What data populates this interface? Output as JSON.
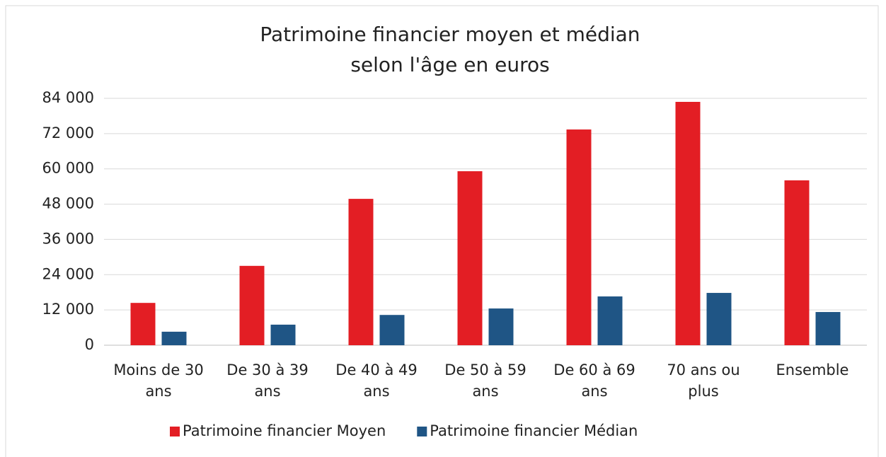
{
  "chart_data": {
    "type": "bar",
    "title": [
      "Patrimoine financier moyen et médian",
      "selon l'âge en euros"
    ],
    "categories": [
      "Moins de 30 ans",
      "De 30 à 39 ans",
      "De 40 à 49 ans",
      "De 50 à 59 ans",
      "De 60 à 69 ans",
      "70 ans ou plus",
      "Ensemble"
    ],
    "series": [
      {
        "name": "Patrimoine financier  Moyen",
        "color": "#e31e24",
        "values": [
          14400,
          27000,
          49800,
          59200,
          73400,
          82800,
          56100
        ]
      },
      {
        "name": "Patrimoine financier  Médian",
        "color": "#1f5585",
        "values": [
          4600,
          7000,
          10300,
          12500,
          16600,
          17800,
          11300
        ]
      }
    ],
    "ylim": [
      0,
      84000
    ],
    "yticks": [
      0,
      {
        "value": 12000,
        "label": "12 000"
      },
      {
        "value": 24000,
        "label": "24 000"
      },
      {
        "value": 36000,
        "label": "36 000"
      },
      {
        "value": 48000,
        "label": "48 000"
      },
      {
        "value": 60000,
        "label": "60 000"
      },
      {
        "value": 72000,
        "label": "72 000"
      },
      {
        "value": 84000,
        "label": "84 000"
      }
    ],
    "grid": true,
    "legend": "bottom"
  }
}
